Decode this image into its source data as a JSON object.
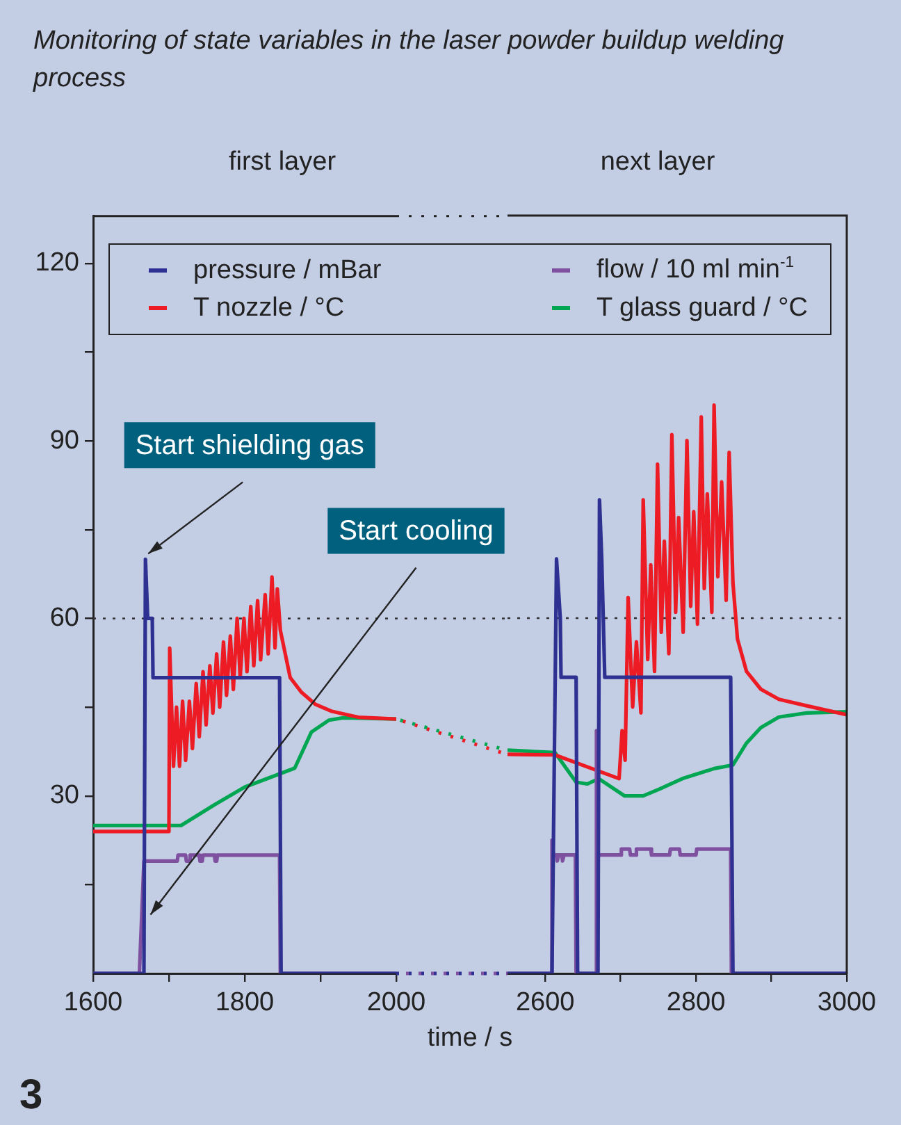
{
  "chart_data": [
    {
      "type": "line",
      "title": "Monitoring of state variables in the laser powder buildup welding process",
      "xlabel": "time / s",
      "annotations": [
        "first layer",
        {
          "text": "Start shielding gas",
          "x": 1669,
          "y": 70
        },
        {
          "text": "Start cooling",
          "x": 1672,
          "y": 9
        },
        "3"
      ],
      "xlim": [
        1600,
        2000
      ],
      "xticks": [
        1600,
        {
          "value": 1700,
          "label": null
        },
        1800,
        {
          "value": 1900,
          "label": null
        },
        2000
      ],
      "ylim": [
        0,
        128
      ],
      "yticks": [
        {
          "value": 15,
          "label": null
        },
        30,
        {
          "value": 45,
          "label": null
        },
        60,
        {
          "value": 75,
          "label": null
        },
        90,
        {
          "value": 105,
          "label": null
        },
        120
      ],
      "legend": "top",
      "marker": "none",
      "ref_lines": [
        {
          "axis": "y",
          "value": 60,
          "line_style": "dotted"
        }
      ],
      "series": [
        {
          "name": "pressure / mBar",
          "color": "#2e3192",
          "x": [
            1600,
            1667,
            1669,
            1672,
            1678,
            1679,
            1846,
            1848,
            2000
          ],
          "values": [
            0,
            0,
            70,
            60,
            60,
            50,
            50,
            0,
            0
          ]
        },
        {
          "name": "flow / 10 ml min$^{-1}$",
          "color": "#7f4fa0",
          "x": [
            1600,
            1661,
            1667,
            1711,
            1712,
            1722,
            1723,
            1727,
            1728,
            1740,
            1741,
            1744,
            1745,
            1760,
            1761,
            1763,
            1764,
            1846,
            1847,
            2000
          ],
          "values": [
            0,
            0,
            19,
            19,
            20,
            20,
            19,
            19,
            20,
            20,
            19,
            19,
            20,
            20,
            19,
            19,
            20,
            20,
            0,
            0
          ]
        },
        {
          "name": "T nozzle / °C",
          "color": "#ed1c24",
          "x": [
            1600,
            1700,
            1701,
            1706,
            1710,
            1714,
            1718,
            1722,
            1727,
            1731,
            1736,
            1740,
            1745,
            1749,
            1754,
            1758,
            1763,
            1767,
            1772,
            1776,
            1781,
            1785,
            1790,
            1794,
            1799,
            1803,
            1808,
            1812,
            1817,
            1821,
            1827,
            1831,
            1836,
            1840,
            1843,
            1847,
            1860,
            1875,
            1893,
            1915,
            1950,
            2000
          ],
          "values": [
            24,
            24,
            55,
            35,
            45,
            35,
            46,
            36,
            46,
            38,
            49,
            40,
            51,
            42,
            52,
            44,
            54,
            45,
            56,
            47,
            57,
            48,
            60,
            50,
            60,
            51,
            62,
            52,
            63,
            53,
            64,
            54,
            67,
            55,
            65,
            58,
            50,
            47.5,
            45.5,
            44.3,
            43.3,
            43
          ]
        },
        {
          "name": "T glass guard / °C",
          "color": "#00a651",
          "x": [
            1600,
            1716,
            1760,
            1800,
            1866,
            1888,
            1911,
            1930,
            2000
          ],
          "values": [
            25,
            25,
            28.5,
            31.5,
            34.7,
            40.8,
            42.8,
            43.2,
            43
          ]
        }
      ]
    },
    {
      "type": "line",
      "annotations": [
        "next layer"
      ],
      "tick_labels": "x",
      "xlim": [
        2550,
        3000
      ],
      "xticks": [
        2600,
        {
          "value": 2700,
          "label": null
        },
        2800,
        {
          "value": 2900,
          "label": null
        },
        3000
      ],
      "ylim": [
        0,
        128
      ],
      "marker": "none",
      "ref_lines": [
        {
          "axis": "y",
          "value": 60,
          "line_style": "dotted"
        }
      ],
      "series": [
        {
          "color": "#2e3192",
          "x": [
            2550,
            2609,
            2615,
            2620,
            2621,
            2641,
            2643,
            2670,
            2672,
            2675,
            2677,
            2679,
            2846,
            2849,
            3000
          ],
          "values": [
            0,
            0,
            70,
            60,
            50,
            50,
            0,
            0,
            80,
            70,
            60,
            50,
            50,
            0,
            0
          ]
        },
        {
          "color": "#7f4fa0",
          "x": [
            2550,
            2608,
            2609,
            2611,
            2615,
            2616,
            2618,
            2622,
            2623,
            2625,
            2640,
            2641,
            2667,
            2668,
            2670,
            2700,
            2701,
            2712,
            2713,
            2720,
            2721,
            2740,
            2741,
            2765,
            2766,
            2778,
            2779,
            2800,
            2801,
            2846,
            2847,
            3000
          ],
          "values": [
            0,
            0,
            22.5,
            20,
            20,
            19,
            20,
            20,
            19,
            20,
            20,
            0,
            0,
            41,
            20,
            20,
            21,
            21,
            20,
            20,
            21,
            21,
            20,
            20,
            21,
            21,
            20,
            20,
            21,
            21,
            0,
            0
          ]
        },
        {
          "color": "#ed1c24",
          "x": [
            2550,
            2613,
            2698,
            2702,
            2706,
            2710,
            2716,
            2721,
            2727,
            2730,
            2736,
            2740,
            2745,
            2749,
            2754,
            2758,
            2764,
            2768,
            2773,
            2777,
            2783,
            2788,
            2793,
            2797,
            2802,
            2807,
            2811,
            2815,
            2821,
            2824,
            2829,
            2834,
            2840,
            2844,
            2849,
            2855,
            2867,
            2886,
            2910,
            2947,
            3000
          ],
          "values": [
            37,
            36.9,
            32.9,
            41,
            36,
            63.5,
            45,
            56,
            44,
            80,
            53,
            69,
            51,
            86,
            57.6,
            73,
            54,
            91,
            61,
            77,
            57.6,
            90,
            62,
            78,
            59,
            94,
            65,
            81,
            61,
            96,
            67,
            83,
            63,
            88,
            66,
            56.5,
            51,
            48,
            46.3,
            45.2,
            43.7
          ]
        },
        {
          "color": "#00a651",
          "x": [
            2550,
            2613,
            2641,
            2656,
            2671,
            2705,
            2730,
            2751,
            2782,
            2824,
            2849,
            2867,
            2886,
            2910,
            2947,
            3000
          ],
          "values": [
            37.7,
            37.3,
            32.3,
            32,
            32.9,
            30,
            30,
            31.1,
            32.9,
            34.6,
            35.2,
            38.9,
            41.5,
            43.3,
            44,
            44.2
          ]
        }
      ]
    }
  ]
}
